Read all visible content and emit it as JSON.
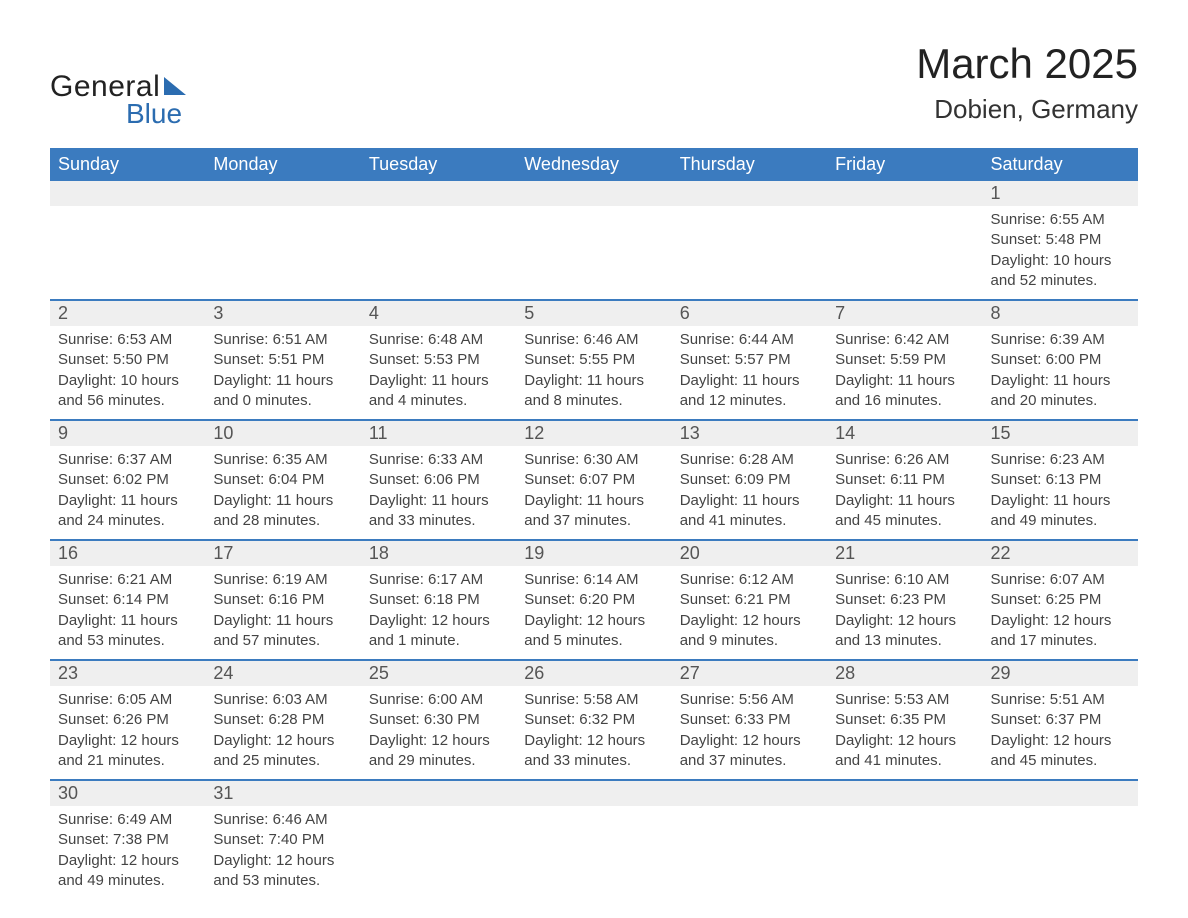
{
  "logo": {
    "text_general": "General",
    "text_blue": "Blue",
    "brand_color": "#2b6cb0"
  },
  "title": "March 2025",
  "subtitle": "Dobien, Germany",
  "colors": {
    "header_bg": "#3b7bbf",
    "header_text": "#ffffff",
    "daynum_bg": "#efefef",
    "daynum_text": "#555555",
    "body_text": "#444444",
    "row_divider": "#3b7bbf"
  },
  "typography": {
    "title_fontsize": 42,
    "subtitle_fontsize": 26,
    "header_fontsize": 18,
    "daynum_fontsize": 18,
    "body_fontsize": 15,
    "font_family": "Arial"
  },
  "weekdays": [
    "Sunday",
    "Monday",
    "Tuesday",
    "Wednesday",
    "Thursday",
    "Friday",
    "Saturday"
  ],
  "weeks": [
    [
      null,
      null,
      null,
      null,
      null,
      null,
      {
        "d": "1",
        "sunrise": "6:55 AM",
        "sunset": "5:48 PM",
        "daylight": "10 hours and 52 minutes."
      }
    ],
    [
      {
        "d": "2",
        "sunrise": "6:53 AM",
        "sunset": "5:50 PM",
        "daylight": "10 hours and 56 minutes."
      },
      {
        "d": "3",
        "sunrise": "6:51 AM",
        "sunset": "5:51 PM",
        "daylight": "11 hours and 0 minutes."
      },
      {
        "d": "4",
        "sunrise": "6:48 AM",
        "sunset": "5:53 PM",
        "daylight": "11 hours and 4 minutes."
      },
      {
        "d": "5",
        "sunrise": "6:46 AM",
        "sunset": "5:55 PM",
        "daylight": "11 hours and 8 minutes."
      },
      {
        "d": "6",
        "sunrise": "6:44 AM",
        "sunset": "5:57 PM",
        "daylight": "11 hours and 12 minutes."
      },
      {
        "d": "7",
        "sunrise": "6:42 AM",
        "sunset": "5:59 PM",
        "daylight": "11 hours and 16 minutes."
      },
      {
        "d": "8",
        "sunrise": "6:39 AM",
        "sunset": "6:00 PM",
        "daylight": "11 hours and 20 minutes."
      }
    ],
    [
      {
        "d": "9",
        "sunrise": "6:37 AM",
        "sunset": "6:02 PM",
        "daylight": "11 hours and 24 minutes."
      },
      {
        "d": "10",
        "sunrise": "6:35 AM",
        "sunset": "6:04 PM",
        "daylight": "11 hours and 28 minutes."
      },
      {
        "d": "11",
        "sunrise": "6:33 AM",
        "sunset": "6:06 PM",
        "daylight": "11 hours and 33 minutes."
      },
      {
        "d": "12",
        "sunrise": "6:30 AM",
        "sunset": "6:07 PM",
        "daylight": "11 hours and 37 minutes."
      },
      {
        "d": "13",
        "sunrise": "6:28 AM",
        "sunset": "6:09 PM",
        "daylight": "11 hours and 41 minutes."
      },
      {
        "d": "14",
        "sunrise": "6:26 AM",
        "sunset": "6:11 PM",
        "daylight": "11 hours and 45 minutes."
      },
      {
        "d": "15",
        "sunrise": "6:23 AM",
        "sunset": "6:13 PM",
        "daylight": "11 hours and 49 minutes."
      }
    ],
    [
      {
        "d": "16",
        "sunrise": "6:21 AM",
        "sunset": "6:14 PM",
        "daylight": "11 hours and 53 minutes."
      },
      {
        "d": "17",
        "sunrise": "6:19 AM",
        "sunset": "6:16 PM",
        "daylight": "11 hours and 57 minutes."
      },
      {
        "d": "18",
        "sunrise": "6:17 AM",
        "sunset": "6:18 PM",
        "daylight": "12 hours and 1 minute."
      },
      {
        "d": "19",
        "sunrise": "6:14 AM",
        "sunset": "6:20 PM",
        "daylight": "12 hours and 5 minutes."
      },
      {
        "d": "20",
        "sunrise": "6:12 AM",
        "sunset": "6:21 PM",
        "daylight": "12 hours and 9 minutes."
      },
      {
        "d": "21",
        "sunrise": "6:10 AM",
        "sunset": "6:23 PM",
        "daylight": "12 hours and 13 minutes."
      },
      {
        "d": "22",
        "sunrise": "6:07 AM",
        "sunset": "6:25 PM",
        "daylight": "12 hours and 17 minutes."
      }
    ],
    [
      {
        "d": "23",
        "sunrise": "6:05 AM",
        "sunset": "6:26 PM",
        "daylight": "12 hours and 21 minutes."
      },
      {
        "d": "24",
        "sunrise": "6:03 AM",
        "sunset": "6:28 PM",
        "daylight": "12 hours and 25 minutes."
      },
      {
        "d": "25",
        "sunrise": "6:00 AM",
        "sunset": "6:30 PM",
        "daylight": "12 hours and 29 minutes."
      },
      {
        "d": "26",
        "sunrise": "5:58 AM",
        "sunset": "6:32 PM",
        "daylight": "12 hours and 33 minutes."
      },
      {
        "d": "27",
        "sunrise": "5:56 AM",
        "sunset": "6:33 PM",
        "daylight": "12 hours and 37 minutes."
      },
      {
        "d": "28",
        "sunrise": "5:53 AM",
        "sunset": "6:35 PM",
        "daylight": "12 hours and 41 minutes."
      },
      {
        "d": "29",
        "sunrise": "5:51 AM",
        "sunset": "6:37 PM",
        "daylight": "12 hours and 45 minutes."
      }
    ],
    [
      {
        "d": "30",
        "sunrise": "6:49 AM",
        "sunset": "7:38 PM",
        "daylight": "12 hours and 49 minutes."
      },
      {
        "d": "31",
        "sunrise": "6:46 AM",
        "sunset": "7:40 PM",
        "daylight": "12 hours and 53 minutes."
      },
      null,
      null,
      null,
      null,
      null
    ]
  ],
  "labels": {
    "sunrise": "Sunrise:",
    "sunset": "Sunset:",
    "daylight": "Daylight:"
  }
}
